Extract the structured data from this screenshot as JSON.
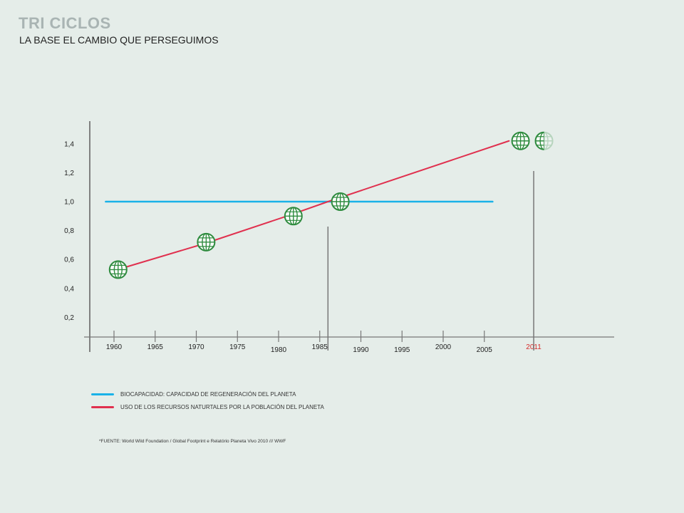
{
  "header": {
    "title": "TRI CICLOS",
    "subtitle": "LA BASE EL CAMBIO QUE PERSEGUIMOS"
  },
  "chart_data": {
    "type": "line",
    "y_ticks": [
      "1,4",
      "1,2",
      "1,0",
      "0,8",
      "0,6",
      "0,4",
      "0,2"
    ],
    "y_tick_values": [
      1.4,
      1.2,
      1.0,
      0.8,
      0.6,
      0.4,
      0.2
    ],
    "x_ticks": [
      "1960",
      "1965",
      "1970",
      "1975",
      "1980",
      "1985",
      "1990",
      "1995",
      "2000",
      "2005",
      "2011"
    ],
    "x_tick_values": [
      1960,
      1965,
      1970,
      1975,
      1980,
      1985,
      1990,
      1995,
      2000,
      2005,
      2011
    ],
    "highlight_year": "2011",
    "ylim": [
      0.0,
      1.4
    ],
    "series": [
      {
        "name": "BIOCAPACIDAD: CAPACIDAD DE REGENERACIÓN DEL PLANETA",
        "color": "#1ab2e8",
        "points": [
          [
            1959,
            1.0
          ],
          [
            2006,
            1.0
          ]
        ]
      },
      {
        "name": "USO DE LOS RECURSOS NATURTALES POR LA POBLACIÓN DEL PLANETA",
        "color": "#e0304e",
        "points": [
          [
            1961,
            0.54
          ],
          [
            1971,
            0.71
          ],
          [
            1981,
            0.9
          ],
          [
            1986,
            1.0
          ],
          [
            2008,
            1.42
          ]
        ]
      }
    ],
    "globe_markers": [
      {
        "x": 1960.5,
        "y": 0.53,
        "globes": 1.0
      },
      {
        "x": 1971.2,
        "y": 0.72,
        "globes": 1.0
      },
      {
        "x": 1981.8,
        "y": 0.9,
        "globes": 1.0
      },
      {
        "x": 1987.5,
        "y": 1.0,
        "globes": 1.0
      },
      {
        "x": 2009.4,
        "y": 1.42,
        "globes": 1.5
      }
    ],
    "reference_lines": [
      1986,
      2011
    ],
    "globe_color": "#2e8b3e"
  },
  "source": "*FUENTE: World Wild Foundation  / Global  Footprint  e Relatório  Planeta  Vivo 2010  ///  WWF"
}
